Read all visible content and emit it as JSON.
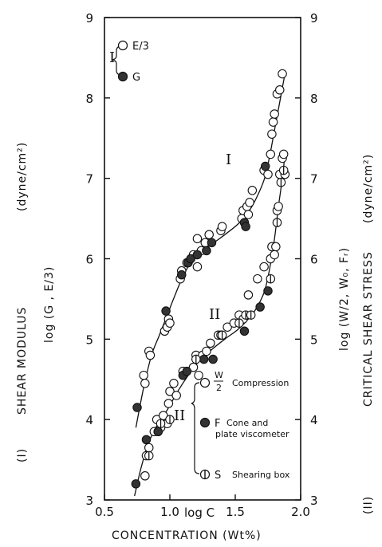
{
  "chart_data": {
    "type": "scatter",
    "x_axis": {
      "label": "log  C",
      "title": "CONCENTRATION (Wt%)",
      "range": [
        0.5,
        2.0
      ],
      "ticks": [
        0.5,
        1.0,
        1.5,
        2.0
      ],
      "tick_labels": [
        "0.5",
        "1.0",
        "1.5",
        "2.0"
      ]
    },
    "y_left": {
      "label_prefix": "(I)",
      "label_main": "SHEAR MODULUS",
      "label_unit": "(dyne/cm²)",
      "label_log": "log (G , E/3)",
      "range": [
        3,
        9
      ],
      "ticks": [
        3,
        4,
        5,
        6,
        7,
        8,
        9
      ],
      "tick_labels": [
        "3",
        "4",
        "5",
        "6",
        "7",
        "8",
        "9"
      ]
    },
    "y_right": {
      "label_prefix": "(II)",
      "label_main": "CRITICAL   SHEAR STRESS",
      "label_unit": "(dyne/cm²)",
      "label_log": "log (W/2, W₀, Fᵣ)",
      "range": [
        3,
        9
      ],
      "ticks": [
        3,
        4,
        5,
        6,
        7,
        8,
        9
      ],
      "tick_labels": [
        "3",
        "4",
        "5",
        "6",
        "7",
        "8",
        "9"
      ]
    },
    "curve_labels": [
      "I",
      "II"
    ],
    "legend_I": {
      "group": "I",
      "entries": [
        {
          "marker": "open",
          "label": "E/3"
        },
        {
          "marker": "filled",
          "label": "G"
        }
      ]
    },
    "legend_II": {
      "group": "II",
      "entries": [
        {
          "marker": "open",
          "fraction_num": "W",
          "fraction_den": "2",
          "label": "Compression"
        },
        {
          "marker": "filled",
          "symbol": "F",
          "label": "Cone and",
          "label2": "plate viscometer"
        },
        {
          "marker": "half",
          "symbol": "S",
          "label": "Shearing box"
        }
      ]
    },
    "series": [
      {
        "name": "E/3",
        "marker": "open",
        "points": [
          [
            0.8,
            4.55
          ],
          [
            0.81,
            4.45
          ],
          [
            0.84,
            4.85
          ],
          [
            0.85,
            4.8
          ],
          [
            0.96,
            5.1
          ],
          [
            0.98,
            5.15
          ],
          [
            0.99,
            5.25
          ],
          [
            1.0,
            5.2
          ],
          [
            1.08,
            5.75
          ],
          [
            1.09,
            5.85
          ],
          [
            1.13,
            5.95
          ],
          [
            1.18,
            6.05
          ],
          [
            1.21,
            6.25
          ],
          [
            1.21,
            5.9
          ],
          [
            1.24,
            6.1
          ],
          [
            1.27,
            6.2
          ],
          [
            1.3,
            6.3
          ],
          [
            1.39,
            6.35
          ],
          [
            1.4,
            6.4
          ],
          [
            1.55,
            6.5
          ],
          [
            1.56,
            6.6
          ],
          [
            1.59,
            6.65
          ],
          [
            1.6,
            6.55
          ],
          [
            1.61,
            6.7
          ],
          [
            1.63,
            6.85
          ],
          [
            1.72,
            7.1
          ],
          [
            1.75,
            7.05
          ],
          [
            1.77,
            7.3
          ],
          [
            1.78,
            7.55
          ],
          [
            1.79,
            7.7
          ],
          [
            1.8,
            7.8
          ],
          [
            1.82,
            8.05
          ],
          [
            1.84,
            8.1
          ],
          [
            1.86,
            8.3
          ]
        ]
      },
      {
        "name": "G",
        "marker": "filled",
        "points": [
          [
            0.75,
            4.15
          ],
          [
            0.97,
            5.35
          ],
          [
            1.09,
            5.8
          ],
          [
            1.14,
            5.95
          ],
          [
            1.16,
            6.0
          ],
          [
            1.21,
            6.05
          ],
          [
            1.28,
            6.1
          ],
          [
            1.32,
            6.2
          ],
          [
            1.57,
            6.45
          ],
          [
            1.58,
            6.4
          ],
          [
            1.73,
            7.15
          ]
        ]
      },
      {
        "name": "W/2",
        "marker": "open",
        "points": [
          [
            0.81,
            3.3
          ],
          [
            0.82,
            3.55
          ],
          [
            0.84,
            3.65
          ],
          [
            0.88,
            3.85
          ],
          [
            0.9,
            4.0
          ],
          [
            0.91,
            3.85
          ],
          [
            0.93,
            3.9
          ],
          [
            0.95,
            4.05
          ],
          [
            0.98,
            3.95
          ],
          [
            0.99,
            4.2
          ],
          [
            1.0,
            4.35
          ],
          [
            1.03,
            4.45
          ],
          [
            1.05,
            4.3
          ],
          [
            1.1,
            4.6
          ],
          [
            1.18,
            4.65
          ],
          [
            1.2,
            4.8
          ],
          [
            1.22,
            4.55
          ],
          [
            1.25,
            4.8
          ],
          [
            1.28,
            4.85
          ],
          [
            1.31,
            4.95
          ],
          [
            1.37,
            5.05
          ],
          [
            1.39,
            5.05
          ],
          [
            1.44,
            5.15
          ],
          [
            1.49,
            5.2
          ],
          [
            1.53,
            5.3
          ],
          [
            1.56,
            5.25
          ],
          [
            1.6,
            5.55
          ],
          [
            1.67,
            5.75
          ],
          [
            1.72,
            5.9
          ],
          [
            1.77,
            6.0
          ],
          [
            1.78,
            6.15
          ],
          [
            1.8,
            6.05
          ],
          [
            1.81,
            6.15
          ],
          [
            1.82,
            6.6
          ],
          [
            1.83,
            6.65
          ],
          [
            1.84,
            7.05
          ],
          [
            1.86,
            7.25
          ],
          [
            1.87,
            7.3
          ],
          [
            1.88,
            7.05
          ]
        ]
      },
      {
        "name": "F",
        "marker": "filled",
        "points": [
          [
            0.74,
            3.2
          ],
          [
            0.82,
            3.75
          ],
          [
            0.91,
            3.85
          ],
          [
            1.1,
            4.55
          ],
          [
            1.13,
            4.6
          ],
          [
            1.26,
            4.75
          ],
          [
            1.33,
            4.75
          ],
          [
            1.57,
            5.1
          ],
          [
            1.69,
            5.4
          ],
          [
            1.75,
            5.6
          ]
        ]
      },
      {
        "name": "S",
        "marker": "half",
        "points": [
          [
            0.84,
            3.55
          ],
          [
            0.93,
            3.95
          ],
          [
            1.0,
            4.0
          ],
          [
            1.2,
            4.75
          ],
          [
            1.4,
            5.05
          ],
          [
            1.53,
            5.2
          ],
          [
            1.58,
            5.3
          ],
          [
            1.62,
            5.3
          ],
          [
            1.77,
            5.75
          ],
          [
            1.82,
            6.45
          ],
          [
            1.85,
            6.95
          ],
          [
            1.87,
            7.1
          ]
        ]
      }
    ],
    "curves": [
      {
        "name": "I",
        "points": [
          [
            0.74,
            3.9
          ],
          [
            0.8,
            4.4
          ],
          [
            0.86,
            4.8
          ],
          [
            0.92,
            5.05
          ],
          [
            0.98,
            5.3
          ],
          [
            1.04,
            5.55
          ],
          [
            1.1,
            5.78
          ],
          [
            1.16,
            5.95
          ],
          [
            1.24,
            6.08
          ],
          [
            1.32,
            6.18
          ],
          [
            1.42,
            6.3
          ],
          [
            1.52,
            6.43
          ],
          [
            1.6,
            6.58
          ],
          [
            1.66,
            6.75
          ],
          [
            1.72,
            6.98
          ],
          [
            1.76,
            7.25
          ],
          [
            1.8,
            7.6
          ],
          [
            1.84,
            7.95
          ],
          [
            1.88,
            8.3
          ]
        ]
      },
      {
        "name": "II",
        "points": [
          [
            0.73,
            3.05
          ],
          [
            0.78,
            3.4
          ],
          [
            0.84,
            3.72
          ],
          [
            0.9,
            3.92
          ],
          [
            0.98,
            4.12
          ],
          [
            1.06,
            4.35
          ],
          [
            1.14,
            4.55
          ],
          [
            1.22,
            4.72
          ],
          [
            1.32,
            4.87
          ],
          [
            1.42,
            5.0
          ],
          [
            1.52,
            5.12
          ],
          [
            1.6,
            5.25
          ],
          [
            1.66,
            5.38
          ],
          [
            1.72,
            5.58
          ],
          [
            1.76,
            5.85
          ],
          [
            1.8,
            6.25
          ],
          [
            1.83,
            6.65
          ],
          [
            1.86,
            7.0
          ],
          [
            1.88,
            7.3
          ]
        ]
      }
    ]
  }
}
